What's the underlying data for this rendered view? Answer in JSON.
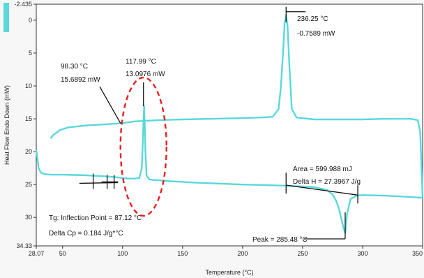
{
  "chart_data": {
    "type": "line",
    "title": "",
    "xlabel": "Temperature (°C)",
    "ylabel": "Heat Flow Endo Down (mW)",
    "xlim": [
      28.07,
      350
    ],
    "ylim": [
      34.33,
      -2.435
    ],
    "y_inverted": true,
    "x_ticks": [
      "28.07",
      "50",
      "100",
      "150",
      "200",
      "250",
      "300",
      "350"
    ],
    "x_tick_values": [
      28.07,
      50,
      100,
      150,
      200,
      250,
      300,
      350
    ],
    "y_ticks": [
      "-2.435",
      "0",
      "5",
      "10",
      "15",
      "20",
      "25",
      "30",
      "34.33"
    ],
    "y_tick_values": [
      -2.435,
      0,
      5,
      10,
      15,
      20,
      25,
      30,
      34.33
    ],
    "series_color": "#5ad8dc",
    "series": [
      {
        "values_label": "lower trace",
        "x": [
          28.07,
          29,
          30,
          32,
          35,
          40,
          50,
          60,
          70,
          80,
          90,
          95,
          100,
          105,
          110,
          114,
          116,
          117,
          117.5,
          117.99,
          118.5,
          119,
          120,
          122,
          125,
          130,
          140,
          160,
          180,
          200,
          220,
          240,
          260,
          270,
          275,
          278,
          280,
          282,
          284,
          285.48,
          287,
          290,
          295,
          300,
          320,
          340,
          348,
          350
        ],
        "y": [
          19.7,
          21.0,
          22.5,
          23.2,
          23.4,
          23.5,
          23.5,
          23.55,
          23.6,
          23.7,
          23.8,
          23.9,
          24.0,
          24.1,
          24.1,
          24.0,
          22.5,
          18.0,
          15.0,
          13.0976,
          16.0,
          20.0,
          23.6,
          24.2,
          24.3,
          24.35,
          24.5,
          24.7,
          24.85,
          25.0,
          25.1,
          25.2,
          25.4,
          25.8,
          26.5,
          27.5,
          28.5,
          30.0,
          31.5,
          32.4,
          29.5,
          27.2,
          26.7,
          26.6,
          26.7,
          26.9,
          27.0,
          27.0
        ]
      },
      {
        "values_label": "upper trace",
        "x": [
          40,
          42,
          45,
          48,
          55,
          60,
          70,
          80,
          90,
          98.3,
          110,
          130,
          150,
          175,
          200,
          215,
          225,
          230,
          232,
          234,
          235,
          236.25,
          237.5,
          239,
          241,
          245,
          260,
          280,
          300,
          320,
          340,
          346,
          348,
          350
        ],
        "y": [
          18.0,
          17.5,
          17.1,
          16.7,
          16.3,
          16.2,
          16.0,
          15.9,
          15.8,
          15.6892,
          15.4,
          15.2,
          15.1,
          15.0,
          14.9,
          14.8,
          14.7,
          13.5,
          10.0,
          4.0,
          0.5,
          -0.7589,
          1.0,
          7.0,
          13.5,
          14.8,
          15.1,
          15.1,
          15.1,
          15.0,
          15.0,
          15.2,
          17.0,
          27.0
        ]
      }
    ],
    "annotations": [
      {
        "x": 236.25,
        "y": -0.7589,
        "line1": "236.25 °C",
        "line2": "-0.7589 mW"
      },
      {
        "x": 98.3,
        "y": 15.6892,
        "line1": "98.30 °C",
        "line2": "15.6892 mW"
      },
      {
        "x": 117.99,
        "y": 13.0976,
        "line1": "117.99 °C",
        "line2": "13.0976 mW"
      },
      {
        "x": 236.25,
        "y": 24.5,
        "line1": "Area = 599.988 mJ",
        "line2": "Delta H = 27.3967 J/g"
      },
      {
        "x": 285.48,
        "y": 32.4,
        "line1": "Peak = 285.48 °C"
      },
      {
        "x": 87.12,
        "y": 24.6,
        "line1": "Tg: Inflection Point = 87.12 °C"
      },
      {
        "x": 87.12,
        "y": 24.6,
        "line1": "Delta Cp = 0.184 J/g*°C"
      }
    ],
    "grid": false
  }
}
